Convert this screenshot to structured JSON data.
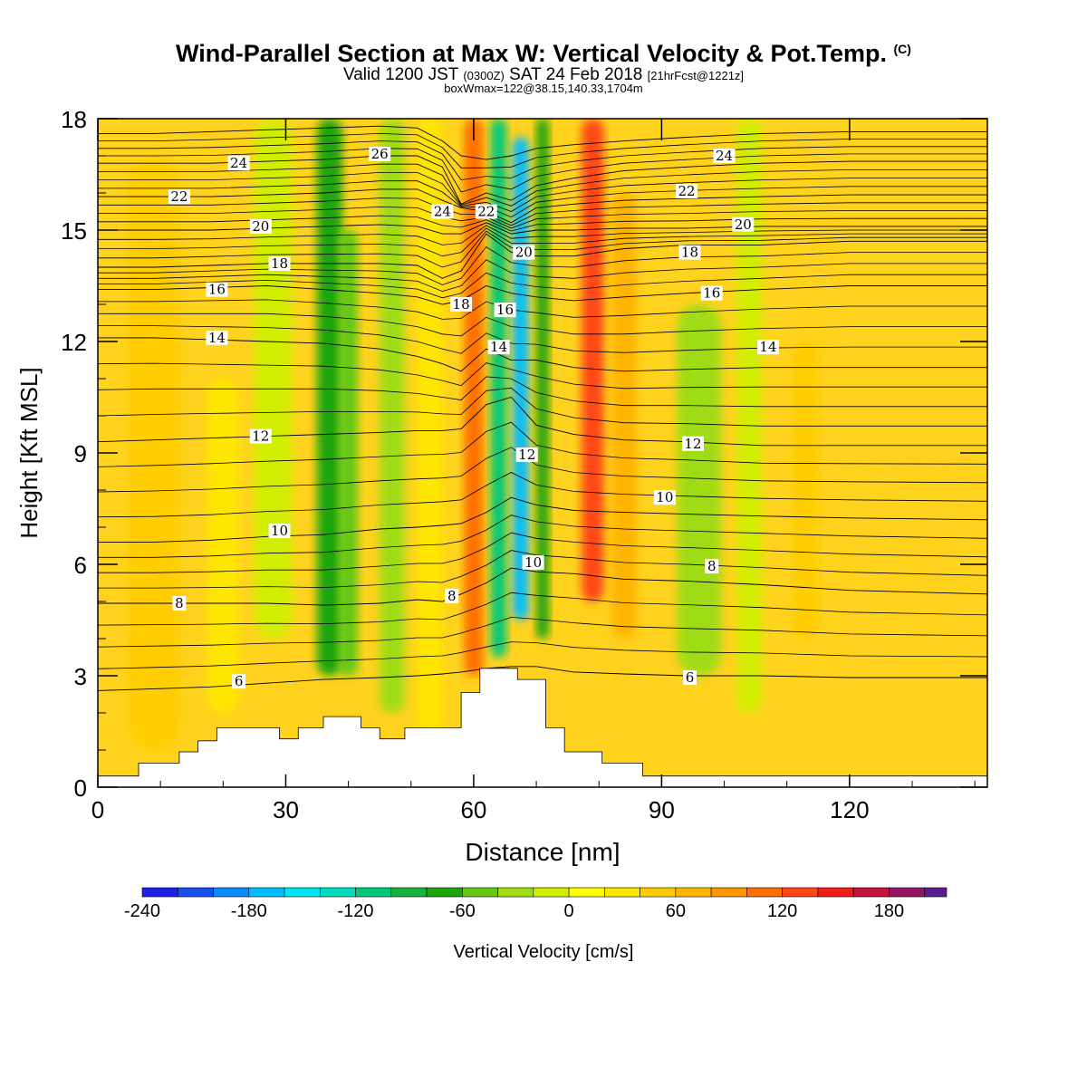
{
  "title": "Wind-Parallel Section at Max W: Vertical Velocity & Pot.Temp.",
  "title_suffix": "(C)",
  "subtitle": {
    "valid_prefix": "Valid 1200 JST",
    "zulu": "(0300Z)",
    "date": "SAT 24 Feb 2018",
    "forecast": "[21hrFcst@1221z]"
  },
  "box_note": "boxWmax=122@38.15,140.33,1704m",
  "chart_data": {
    "type": "heatmap",
    "title": "Wind-Parallel Section at Max W: Vertical Velocity & Pot.Temp.",
    "xlabel": "Distance [nm]",
    "ylabel": "Height [Kft MSL]",
    "xlim": [
      0,
      142
    ],
    "ylim": [
      0,
      18
    ],
    "x_ticks": [
      0,
      30,
      60,
      90,
      120
    ],
    "y_ticks": [
      0,
      3,
      6,
      9,
      12,
      15,
      18
    ],
    "grid": false,
    "colorbar": {
      "label": "Vertical Velocity [cm/s]",
      "ticks": [
        -240,
        -180,
        -120,
        -60,
        0,
        60,
        120,
        180
      ],
      "levels": [
        -240,
        -220,
        -200,
        -180,
        -160,
        -140,
        -120,
        -100,
        -80,
        -60,
        -40,
        -20,
        0,
        20,
        40,
        60,
        80,
        100,
        120,
        140,
        160,
        180,
        200
      ],
      "colors": [
        "#1e1ee6",
        "#1450f0",
        "#0a8cff",
        "#00beff",
        "#00e6f0",
        "#00dcbe",
        "#00c878",
        "#14b43c",
        "#1ea50a",
        "#64c814",
        "#a0dc14",
        "#d2ee00",
        "#ffff00",
        "#ffe600",
        "#ffcd00",
        "#ffb400",
        "#ff9600",
        "#ff6e00",
        "#ff4614",
        "#f01e14",
        "#c8143c",
        "#961464",
        "#5a1e8c"
      ]
    },
    "vertical_velocity_bands": [
      {
        "x": 9,
        "w": 8,
        "zmin": 1,
        "zmax": 17,
        "value": 45
      },
      {
        "x": 20,
        "w": 5,
        "zmin": 2,
        "zmax": 11,
        "value": 20
      },
      {
        "x": 28,
        "w": 6,
        "zmin": 4,
        "zmax": 18,
        "value": -10
      },
      {
        "x": 37,
        "w": 4,
        "zmin": 3,
        "zmax": 18,
        "value": -65
      },
      {
        "x": 40,
        "w": 3,
        "zmin": 3,
        "zmax": 15,
        "value": -50
      },
      {
        "x": 47,
        "w": 4,
        "zmin": 2,
        "zmax": 18,
        "value": -35
      },
      {
        "x": 53,
        "w": 4,
        "zmin": 1,
        "zmax": 18,
        "value": 35
      },
      {
        "x": 60,
        "w": 3,
        "zmin": 3,
        "zmax": 18,
        "value": 110
      },
      {
        "x": 64,
        "w": 2.5,
        "zmin": 3.5,
        "zmax": 18,
        "value": -110
      },
      {
        "x": 67.5,
        "w": 2.5,
        "zmin": 4.5,
        "zmax": 17.5,
        "value": -175
      },
      {
        "x": 71,
        "w": 2,
        "zmin": 4,
        "zmax": 18,
        "value": -75
      },
      {
        "x": 79,
        "w": 3.5,
        "zmin": 5,
        "zmax": 18,
        "value": 125
      },
      {
        "x": 84,
        "w": 4,
        "zmin": 4,
        "zmax": 16,
        "value": 60
      },
      {
        "x": 96,
        "w": 7,
        "zmin": 3,
        "zmax": 13,
        "value": -35
      },
      {
        "x": 104,
        "w": 4,
        "zmin": 2,
        "zmax": 18,
        "value": -20
      },
      {
        "x": 113,
        "w": 4,
        "zmin": 4,
        "zmax": 12,
        "value": 40
      }
    ],
    "terrain": {
      "x": [
        0,
        6.5,
        6.5,
        13,
        13,
        16,
        16,
        19,
        19,
        22,
        22,
        29,
        29,
        32,
        32,
        36,
        36,
        42,
        42,
        45,
        45,
        49,
        49,
        58,
        58,
        61,
        61,
        67,
        67,
        71.5,
        71.5,
        74.5,
        74.5,
        80.5,
        80.5,
        87,
        87,
        142
      ],
      "z": [
        0.3,
        0.3,
        0.65,
        0.65,
        0.95,
        0.95,
        1.25,
        1.25,
        1.6,
        1.6,
        1.6,
        1.6,
        1.3,
        1.3,
        1.6,
        1.6,
        1.9,
        1.9,
        1.6,
        1.6,
        1.3,
        1.3,
        1.6,
        1.6,
        2.55,
        2.55,
        3.2,
        3.2,
        2.9,
        2.9,
        1.6,
        1.6,
        0.95,
        0.95,
        0.65,
        0.65,
        0.3,
        0.3
      ]
    },
    "potential_temperature_contours": [
      {
        "value": 6,
        "label": "6",
        "y": [
          2.6,
          2.65,
          2.7,
          2.8,
          2.9,
          2.95,
          3.0,
          3.05,
          3.1,
          3.2,
          3.25,
          3.25,
          3.1,
          3.05,
          3.0,
          3.0,
          2.95,
          2.95
        ]
      },
      {
        "value": 8,
        "label": "8",
        "y": [
          4.95,
          4.95,
          4.95,
          4.95,
          4.9,
          4.95,
          5.05,
          5.0,
          5.2,
          5.5,
          5.9,
          5.8,
          5.75,
          5.6,
          5.55,
          5.45,
          5.3,
          5.2
        ]
      },
      {
        "value": 10,
        "label": "10",
        "y": [
          6.6,
          6.6,
          6.65,
          6.75,
          6.8,
          6.95,
          7.0,
          7.05,
          7.1,
          7.4,
          7.8,
          7.6,
          7.45,
          7.4,
          7.35,
          7.3,
          7.25,
          7.2
        ]
      },
      {
        "value": 12,
        "label": "12",
        "y": [
          9.3,
          9.35,
          9.4,
          9.45,
          9.5,
          9.55,
          9.6,
          9.6,
          9.65,
          10.3,
          10.5,
          9.75,
          9.5,
          9.35,
          9.3,
          9.2,
          9.2,
          9.2
        ]
      },
      {
        "value": 14,
        "label": "14",
        "y": [
          12.1,
          12.1,
          12.05,
          12.0,
          11.95,
          11.8,
          11.6,
          11.4,
          11.2,
          11.8,
          11.5,
          11.5,
          11.3,
          11.2,
          11.25,
          11.3,
          11.3,
          11.3
        ]
      },
      {
        "value": 16,
        "label": "16",
        "y": [
          13.4,
          13.4,
          13.45,
          13.5,
          13.4,
          13.3,
          13.2,
          13.0,
          13.1,
          13.5,
          13.3,
          13.2,
          13.1,
          13.2,
          13.3,
          13.4,
          13.5,
          13.5
        ]
      },
      {
        "value": 18,
        "label": "18",
        "y": [
          14.0,
          14.0,
          14.05,
          14.1,
          14.1,
          14.1,
          14.05,
          13.7,
          13.9,
          14.9,
          14.4,
          14.3,
          14.3,
          14.5,
          14.6,
          14.6,
          14.7,
          14.7
        ]
      },
      {
        "value": 20,
        "label": "20",
        "y": [
          15.0,
          15.0,
          15.0,
          15.05,
          15.1,
          15.15,
          15.1,
          14.9,
          14.9,
          15.2,
          14.9,
          15.0,
          15.0,
          15.05,
          15.05,
          15.1,
          15.1,
          15.1
        ]
      },
      {
        "value": 22,
        "label": "22",
        "y": [
          15.9,
          15.9,
          15.9,
          15.95,
          16.0,
          16.1,
          16.1,
          15.8,
          15.6,
          15.5,
          15.2,
          15.6,
          15.7,
          15.8,
          15.85,
          15.9,
          15.95,
          15.95
        ]
      },
      {
        "value": 24,
        "label": "24",
        "y": [
          16.8,
          16.8,
          16.8,
          16.85,
          16.9,
          17.0,
          17.0,
          16.7,
          15.7,
          16.0,
          15.8,
          16.2,
          16.4,
          16.6,
          16.7,
          16.8,
          16.85,
          16.85
        ]
      },
      {
        "value": 26,
        "label": "26",
        "y": [
          17.6,
          17.6,
          17.65,
          17.7,
          17.75,
          17.8,
          17.75,
          17.4,
          17.0,
          16.9,
          17.0,
          17.2,
          17.3,
          17.4,
          17.5,
          17.6,
          17.65,
          17.65
        ]
      }
    ],
    "contour_x": [
      0,
      9,
      18,
      27,
      36,
      45,
      51,
      55,
      58,
      62,
      66,
      70,
      76,
      84,
      94,
      106,
      120,
      142
    ],
    "contour_labels": [
      {
        "text": "24",
        "x": 22.5,
        "y": 16.8
      },
      {
        "text": "22",
        "x": 13,
        "y": 15.9
      },
      {
        "text": "20",
        "x": 26,
        "y": 15.1
      },
      {
        "text": "18",
        "x": 29,
        "y": 14.1
      },
      {
        "text": "16",
        "x": 19,
        "y": 13.4
      },
      {
        "text": "14",
        "x": 19,
        "y": 12.1
      },
      {
        "text": "12",
        "x": 26,
        "y": 9.45
      },
      {
        "text": "10",
        "x": 29,
        "y": 6.9
      },
      {
        "text": "8",
        "x": 13,
        "y": 4.95
      },
      {
        "text": "6",
        "x": 22.5,
        "y": 2.85
      },
      {
        "text": "26",
        "x": 45,
        "y": 17.05
      },
      {
        "text": "24",
        "x": 55,
        "y": 15.5
      },
      {
        "text": "22",
        "x": 62,
        "y": 15.5
      },
      {
        "text": "20",
        "x": 68,
        "y": 14.4
      },
      {
        "text": "18",
        "x": 58,
        "y": 13.0
      },
      {
        "text": "16",
        "x": 65,
        "y": 12.85
      },
      {
        "text": "14",
        "x": 64,
        "y": 11.85
      },
      {
        "text": "12",
        "x": 68.5,
        "y": 8.95
      },
      {
        "text": "10",
        "x": 69.5,
        "y": 6.05
      },
      {
        "text": "8",
        "x": 56.5,
        "y": 5.15
      },
      {
        "text": "24",
        "x": 100,
        "y": 17.0
      },
      {
        "text": "22",
        "x": 94,
        "y": 16.05
      },
      {
        "text": "20",
        "x": 103,
        "y": 15.15
      },
      {
        "text": "18",
        "x": 94.5,
        "y": 14.4
      },
      {
        "text": "16",
        "x": 98,
        "y": 13.3
      },
      {
        "text": "14",
        "x": 107,
        "y": 11.85
      },
      {
        "text": "12",
        "x": 95,
        "y": 9.25
      },
      {
        "text": "10",
        "x": 90.5,
        "y": 7.8
      },
      {
        "text": "8",
        "x": 98,
        "y": 5.95
      },
      {
        "text": "6",
        "x": 94.5,
        "y": 2.95
      }
    ]
  }
}
